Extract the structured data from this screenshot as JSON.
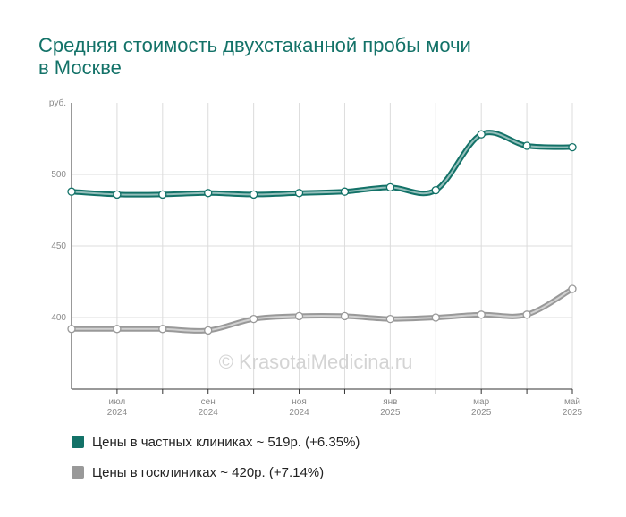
{
  "header": {
    "title_line1": "Средняя стоимость двухстаканной пробы мочи",
    "title_line2": "в Москве"
  },
  "watermark": "© KrasotaiMedicina.ru",
  "legend": [
    {
      "label": "Цены в частных клиниках ~ 519р. (+6.35%)",
      "color": "#137268"
    },
    {
      "label": "Цены в госклиниках ~ 420р. (+7.14%)",
      "color": "#999999"
    }
  ],
  "chart_data": {
    "type": "line",
    "ylabel": "руб.",
    "ylim": [
      350,
      550
    ],
    "yticks": [
      400,
      450,
      500
    ],
    "x": [
      "2024-06",
      "2024-07",
      "2024-08",
      "2024-09",
      "2024-10",
      "2024-11",
      "2024-12",
      "2025-01",
      "2025-02",
      "2025-03",
      "2025-04",
      "2025-05"
    ],
    "xtick_labels": [
      {
        "month": "июл",
        "year": "2024",
        "index": 1
      },
      {
        "month": "сен",
        "year": "2024",
        "index": 3
      },
      {
        "month": "ноя",
        "year": "2024",
        "index": 5
      },
      {
        "month": "янв",
        "year": "2025",
        "index": 7
      },
      {
        "month": "мар",
        "year": "2025",
        "index": 9
      },
      {
        "month": "май",
        "year": "2025",
        "index": 11
      }
    ],
    "grid": true,
    "legend_position": "bottom",
    "series": [
      {
        "name": "Цены в частных клиниках ~ 519р. (+6.35%)",
        "color": "#137268",
        "values": [
          488,
          486,
          486,
          487,
          486,
          487,
          488,
          491,
          489,
          528,
          520,
          519
        ]
      },
      {
        "name": "Цены в госклиниках ~ 420р. (+7.14%)",
        "color": "#999999",
        "values": [
          392,
          392,
          392,
          391,
          399,
          401,
          401,
          399,
          400,
          402,
          402,
          420
        ]
      }
    ]
  }
}
